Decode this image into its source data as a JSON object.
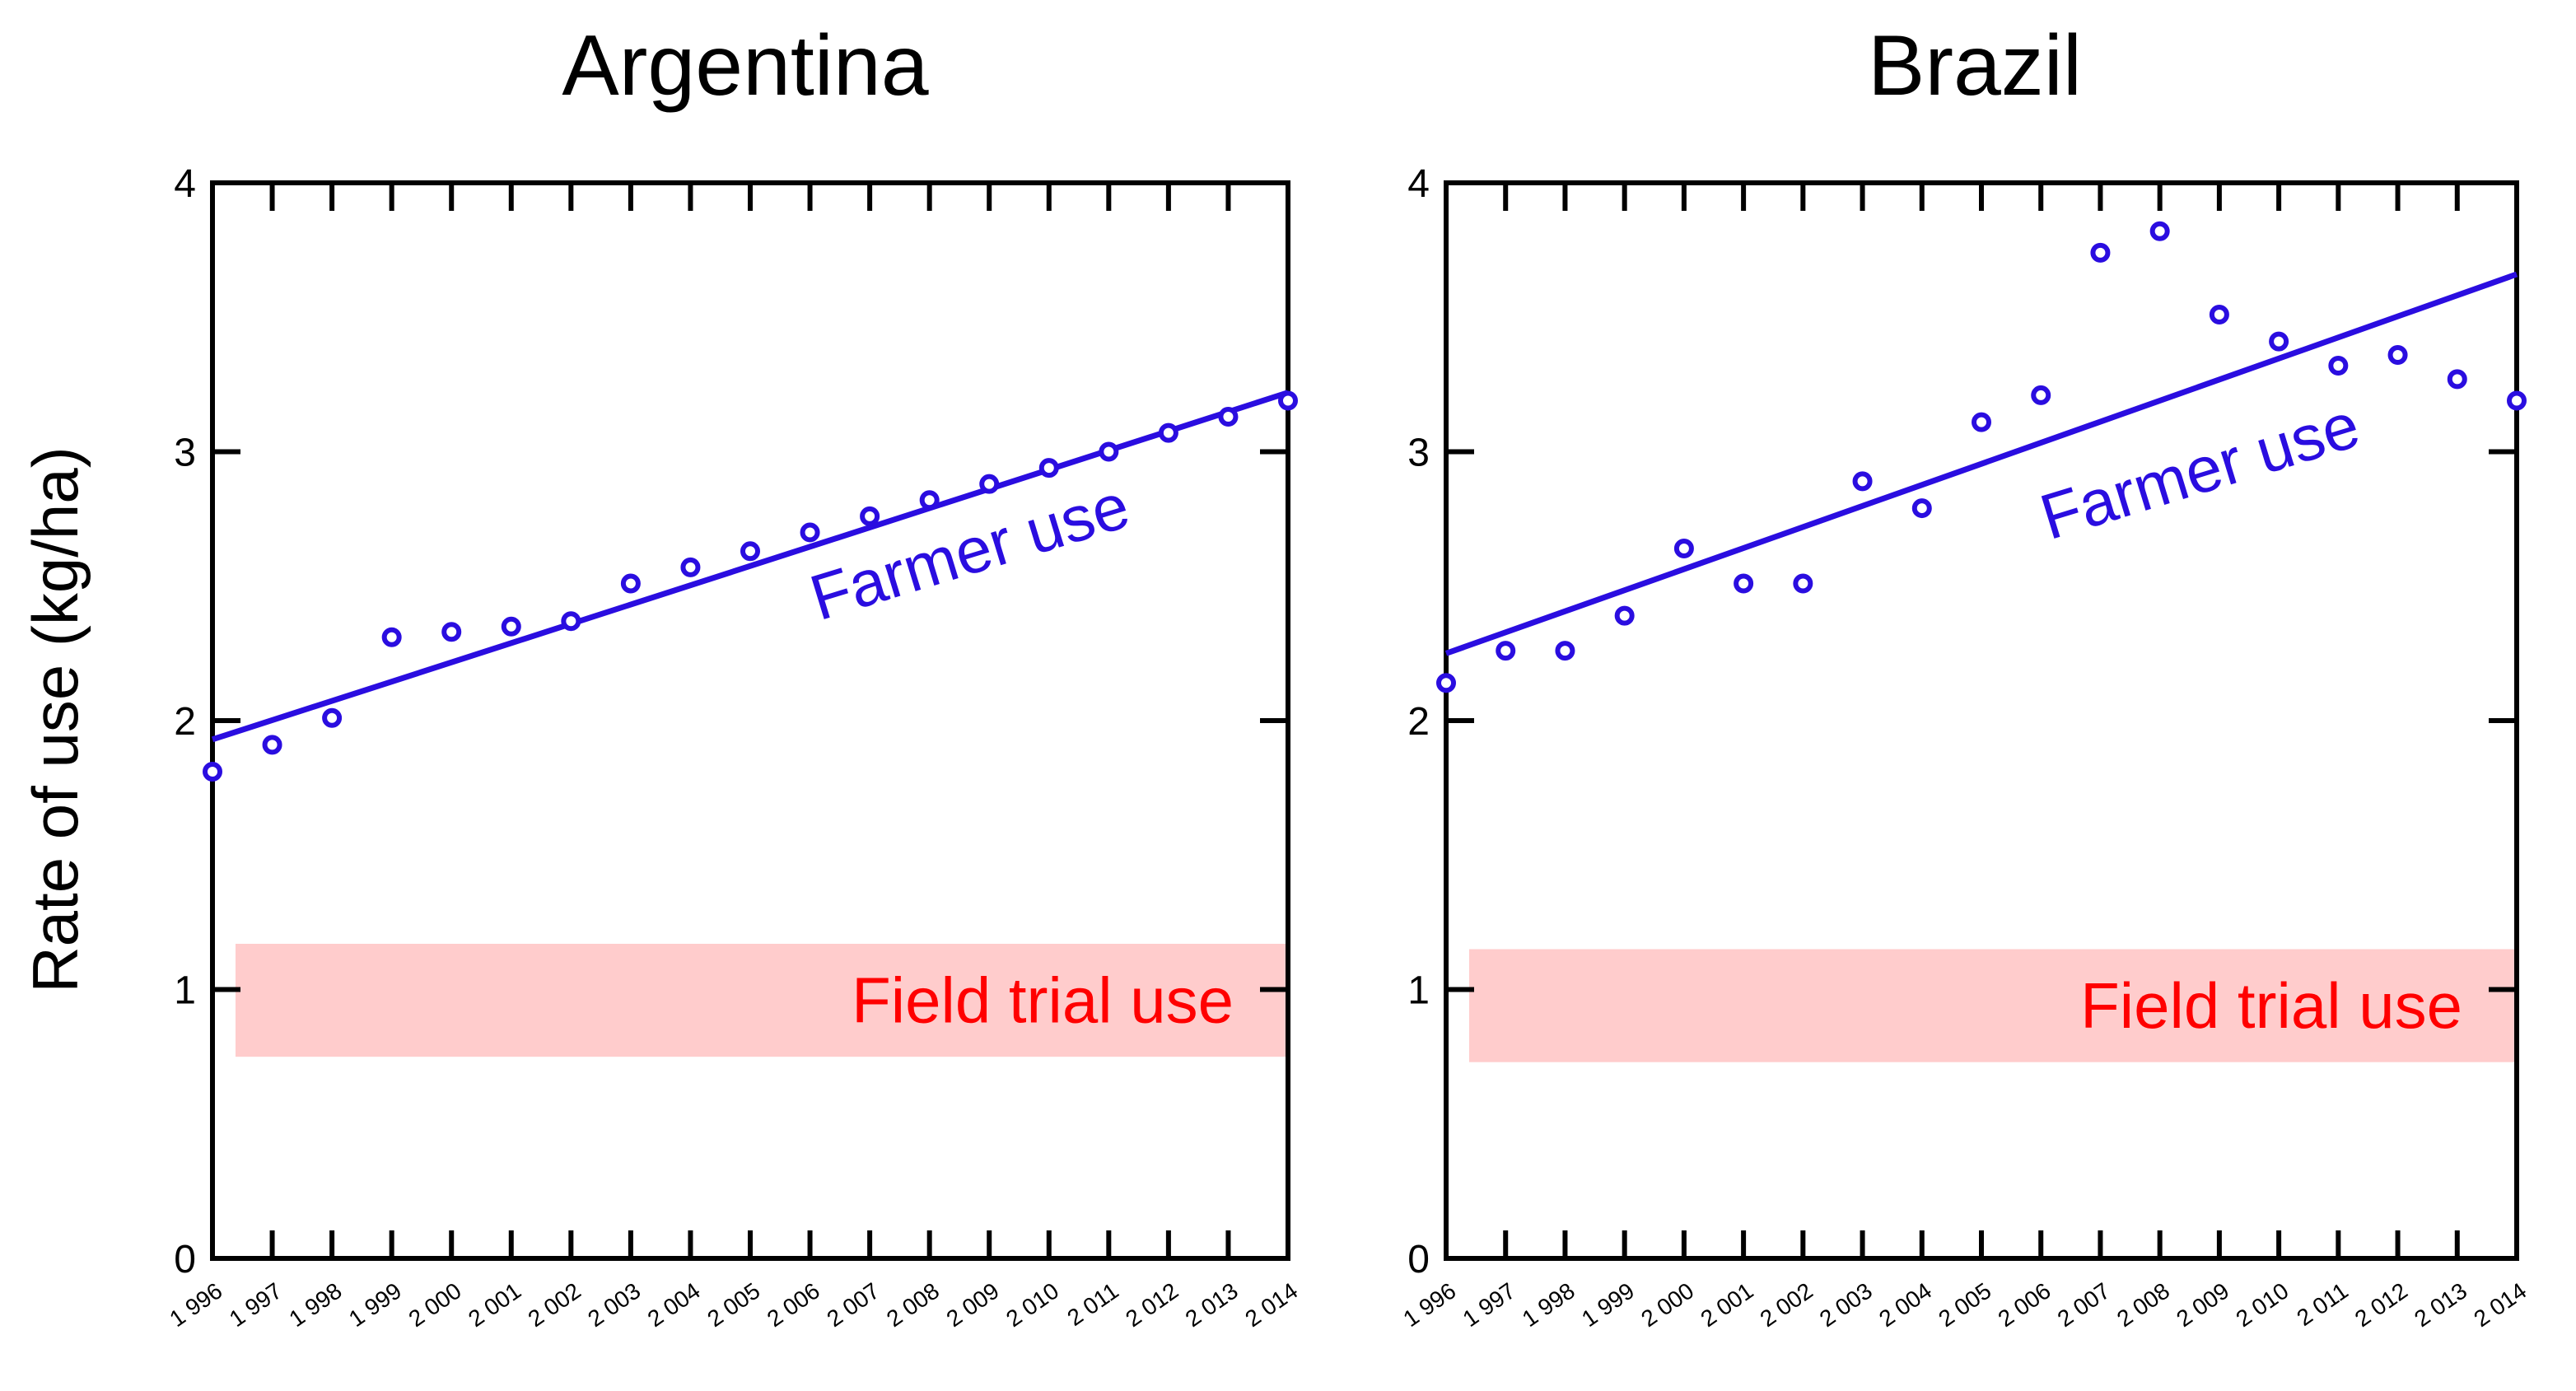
{
  "ylabel": "Rate of use (kg/ha)",
  "colors": {
    "farmer": "#2a0de0",
    "field_trial_text": "#ff0000",
    "field_trial_band": "#ffcccc",
    "axis": "#000000"
  },
  "chart_data": [
    {
      "type": "scatter",
      "title": "Argentina",
      "xlabel": "",
      "ylabel": "Rate of use (kg/ha)",
      "xlim": [
        1996,
        2014
      ],
      "ylim": [
        0,
        4
      ],
      "x_tick_labels": [
        "1 996",
        "1 997",
        "1 998",
        "1 999",
        "2 000",
        "2 001",
        "2 002",
        "2 003",
        "2 004",
        "2 005",
        "2 006",
        "2 007",
        "2 008",
        "2 009",
        "2 010",
        "2 011",
        "2 012",
        "2 013",
        "2 014"
      ],
      "y_ticks": [
        0,
        1,
        2,
        3,
        4
      ],
      "y_tick_labels": [
        "0",
        "1",
        "2",
        "3",
        "4"
      ],
      "series": [
        {
          "name": "Farmer use",
          "x": [
            1996,
            1997,
            1998,
            1999,
            2000,
            2001,
            2002,
            2003,
            2004,
            2005,
            2006,
            2007,
            2008,
            2009,
            2010,
            2011,
            2012,
            2013,
            2014
          ],
          "values": [
            1.81,
            1.91,
            2.01,
            2.31,
            2.33,
            2.35,
            2.37,
            2.51,
            2.57,
            2.63,
            2.7,
            2.76,
            2.82,
            2.88,
            2.94,
            3.0,
            3.07,
            3.13,
            3.19
          ]
        }
      ],
      "trend_line": {
        "x": [
          1996,
          2014
        ],
        "y": [
          1.93,
          3.22
        ]
      },
      "field_trial_band": {
        "label": "Field trial use",
        "y_min": 0.75,
        "y_max": 1.17
      },
      "series_label": "Farmer use"
    },
    {
      "type": "scatter",
      "title": "Brazil",
      "xlabel": "",
      "ylabel": "",
      "xlim": [
        1996,
        2014
      ],
      "ylim": [
        0,
        4
      ],
      "x_tick_labels": [
        "1 996",
        "1 997",
        "1 998",
        "1 999",
        "2 000",
        "2 001",
        "2 002",
        "2 003",
        "2 004",
        "2 005",
        "2 006",
        "2 007",
        "2 008",
        "2 009",
        "2 010",
        "2 011",
        "2 012",
        "2 013",
        "2 014"
      ],
      "y_ticks": [
        0,
        1,
        2,
        3,
        4
      ],
      "y_tick_labels": [
        "0",
        "1",
        "2",
        "3",
        "4"
      ],
      "series": [
        {
          "name": "Farmer use",
          "x": [
            1996,
            1997,
            1998,
            1999,
            2000,
            2001,
            2002,
            2003,
            2004,
            2005,
            2006,
            2007,
            2008,
            2009,
            2010,
            2011,
            2012,
            2013,
            2014
          ],
          "values": [
            2.14,
            2.26,
            2.26,
            2.39,
            2.64,
            2.51,
            2.51,
            2.89,
            2.79,
            3.11,
            3.21,
            3.74,
            3.82,
            3.51,
            3.41,
            3.32,
            3.36,
            3.27,
            3.19
          ]
        }
      ],
      "trend_line": {
        "x": [
          1996,
          2014
        ],
        "y": [
          2.25,
          3.66
        ]
      },
      "field_trial_band": {
        "label": "Field trial use",
        "y_min": 0.73,
        "y_max": 1.15
      },
      "series_label": "Farmer use"
    }
  ]
}
